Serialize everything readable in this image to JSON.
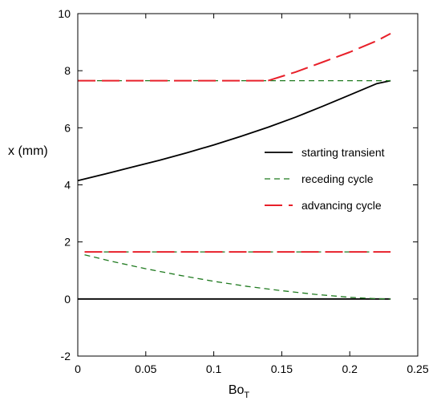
{
  "chart_data": {
    "type": "line",
    "xlabel": "Bo",
    "xlabel_subscript": "T",
    "ylabel": "x (mm)",
    "xlim": [
      0,
      0.25
    ],
    "ylim": [
      -2,
      10
    ],
    "x_ticks": [
      "0",
      "0.05",
      "0.1",
      "0.15",
      "0.2",
      "0.25"
    ],
    "y_ticks": [
      "-2",
      "0",
      "2",
      "4",
      "6",
      "8",
      "10"
    ],
    "x_tick_values": [
      0,
      0.05,
      0.1,
      0.15,
      0.2,
      0.25
    ],
    "y_tick_values": [
      -2,
      0,
      2,
      4,
      6,
      8,
      10
    ],
    "grid": false,
    "legend_position": "right",
    "legend": [
      "starting transient",
      "receding cycle",
      "advancing cycle"
    ],
    "series": [
      {
        "name": "starting transient",
        "color": "#000000",
        "dash": "solid",
        "segments": [
          {
            "x": [
              0,
              0.02,
              0.04,
              0.06,
              0.08,
              0.1,
              0.12,
              0.14,
              0.16,
              0.18,
              0.2,
              0.22,
              0.23
            ],
            "y": [
              4.15,
              4.38,
              4.62,
              4.86,
              5.12,
              5.4,
              5.7,
              6.02,
              6.37,
              6.75,
              7.15,
              7.55,
              7.65
            ]
          },
          {
            "x": [
              0,
              0.23
            ],
            "y": [
              0,
              0
            ]
          }
        ]
      },
      {
        "name": "receding cycle",
        "color": "#1f7a1f",
        "dash": "short",
        "segments": [
          {
            "x": [
              0,
              0.23
            ],
            "y": [
              7.65,
              7.65
            ]
          },
          {
            "x": [
              0.005,
              0.025,
              0.05,
              0.075,
              0.1,
              0.125,
              0.15,
              0.175,
              0.2,
              0.22,
              0.23
            ],
            "y": [
              1.55,
              1.32,
              1.06,
              0.83,
              0.62,
              0.44,
              0.29,
              0.16,
              0.06,
              0.01,
              0
            ]
          },
          {
            "x": [
              0.005,
              0.23
            ],
            "y": [
              1.65,
              1.65
            ]
          }
        ]
      },
      {
        "name": "advancing cycle",
        "color": "#e8202a",
        "dash": "long",
        "segments": [
          {
            "x": [
              0,
              0.14
            ],
            "y": [
              7.65,
              7.65
            ]
          },
          {
            "x": [
              0.14,
              0.16,
              0.18,
              0.2,
              0.22,
              0.23
            ],
            "y": [
              7.65,
              7.95,
              8.3,
              8.65,
              9.05,
              9.3
            ]
          },
          {
            "x": [
              0.005,
              0.23
            ],
            "y": [
              1.65,
              1.65
            ]
          }
        ]
      }
    ]
  }
}
